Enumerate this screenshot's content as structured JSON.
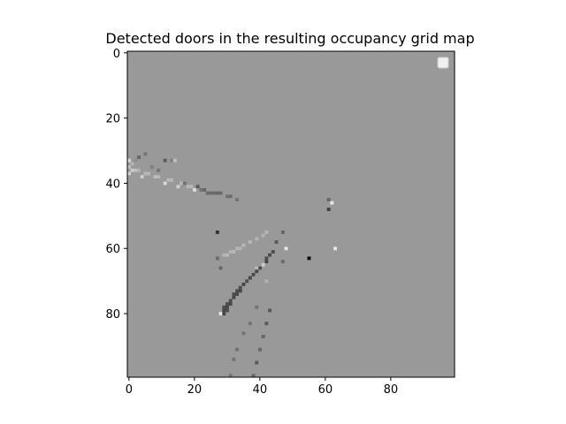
{
  "chart_data": {
    "type": "heatmap",
    "title": "Detected doors in the resulting occupancy grid map",
    "xlabel": "",
    "ylabel": "",
    "grid_size": [
      100,
      100
    ],
    "x_range": [
      -0.5,
      99.5
    ],
    "y_range": [
      99.5,
      -0.5
    ],
    "y_inverted": true,
    "x_ticks": [
      0,
      20,
      40,
      60,
      80
    ],
    "y_ticks": [
      0,
      20,
      40,
      60,
      80
    ],
    "x_tick_labels": [
      "0",
      "20",
      "40",
      "60",
      "80"
    ],
    "y_tick_labels": [
      "0",
      "20",
      "40",
      "60",
      "80"
    ],
    "colormap": "gray",
    "background_value": 0.6,
    "legend": {
      "placement": "upper-right",
      "entries": []
    },
    "cells": [
      {
        "x": 0,
        "y": 33,
        "v": 0.85
      },
      {
        "x": 1,
        "y": 34,
        "v": 0.7
      },
      {
        "x": 2,
        "y": 33,
        "v": 0.55
      },
      {
        "x": 0,
        "y": 35,
        "v": 0.75
      },
      {
        "x": 1,
        "y": 36,
        "v": 0.8
      },
      {
        "x": 2,
        "y": 36,
        "v": 0.75
      },
      {
        "x": 3,
        "y": 36,
        "v": 0.7
      },
      {
        "x": 0,
        "y": 37,
        "v": 0.82
      },
      {
        "x": 3,
        "y": 32,
        "v": 0.4
      },
      {
        "x": 5,
        "y": 31,
        "v": 0.45
      },
      {
        "x": 4,
        "y": 38,
        "v": 0.8
      },
      {
        "x": 5,
        "y": 37,
        "v": 0.72
      },
      {
        "x": 6,
        "y": 37,
        "v": 0.72
      },
      {
        "x": 7,
        "y": 35,
        "v": 0.5
      },
      {
        "x": 8,
        "y": 38,
        "v": 0.75
      },
      {
        "x": 9,
        "y": 38,
        "v": 0.72
      },
      {
        "x": 9,
        "y": 36,
        "v": 0.45
      },
      {
        "x": 11,
        "y": 33,
        "v": 0.35
      },
      {
        "x": 11,
        "y": 40,
        "v": 0.85
      },
      {
        "x": 12,
        "y": 39,
        "v": 0.72
      },
      {
        "x": 13,
        "y": 39,
        "v": 0.72
      },
      {
        "x": 13,
        "y": 33,
        "v": 0.5
      },
      {
        "x": 14,
        "y": 33,
        "v": 0.75
      },
      {
        "x": 15,
        "y": 41,
        "v": 0.82
      },
      {
        "x": 16,
        "y": 40,
        "v": 0.72
      },
      {
        "x": 17,
        "y": 40,
        "v": 0.45
      },
      {
        "x": 18,
        "y": 41,
        "v": 0.72
      },
      {
        "x": 19,
        "y": 41,
        "v": 0.72
      },
      {
        "x": 20,
        "y": 42,
        "v": 0.85
      },
      {
        "x": 21,
        "y": 41,
        "v": 0.35
      },
      {
        "x": 22,
        "y": 42,
        "v": 0.45
      },
      {
        "x": 23,
        "y": 42,
        "v": 0.4
      },
      {
        "x": 24,
        "y": 43,
        "v": 0.42
      },
      {
        "x": 25,
        "y": 43,
        "v": 0.42
      },
      {
        "x": 26,
        "y": 43,
        "v": 0.42
      },
      {
        "x": 27,
        "y": 43,
        "v": 0.4
      },
      {
        "x": 28,
        "y": 43,
        "v": 0.42
      },
      {
        "x": 30,
        "y": 44,
        "v": 0.45
      },
      {
        "x": 31,
        "y": 44,
        "v": 0.42
      },
      {
        "x": 33,
        "y": 45,
        "v": 0.45
      },
      {
        "x": 61,
        "y": 45,
        "v": 0.4
      },
      {
        "x": 62,
        "y": 46,
        "v": 0.9
      },
      {
        "x": 61,
        "y": 48,
        "v": 0.25
      },
      {
        "x": 27,
        "y": 55,
        "v": 0.2
      },
      {
        "x": 47,
        "y": 55,
        "v": 0.4
      },
      {
        "x": 42,
        "y": 55,
        "v": 0.72
      },
      {
        "x": 41,
        "y": 56,
        "v": 0.7
      },
      {
        "x": 39,
        "y": 57,
        "v": 0.7
      },
      {
        "x": 37,
        "y": 58,
        "v": 0.72
      },
      {
        "x": 35,
        "y": 59,
        "v": 0.72
      },
      {
        "x": 34,
        "y": 60,
        "v": 0.7
      },
      {
        "x": 33,
        "y": 60,
        "v": 0.7
      },
      {
        "x": 32,
        "y": 61,
        "v": 0.72
      },
      {
        "x": 31,
        "y": 61,
        "v": 0.7
      },
      {
        "x": 30,
        "y": 62,
        "v": 0.72
      },
      {
        "x": 29,
        "y": 62,
        "v": 0.7
      },
      {
        "x": 27,
        "y": 63,
        "v": 0.42
      },
      {
        "x": 45,
        "y": 58,
        "v": 0.35
      },
      {
        "x": 44,
        "y": 61,
        "v": 0.3
      },
      {
        "x": 48,
        "y": 60,
        "v": 0.9
      },
      {
        "x": 63,
        "y": 60,
        "v": 0.9
      },
      {
        "x": 47,
        "y": 64,
        "v": 0.42
      },
      {
        "x": 55,
        "y": 63,
        "v": 0.02
      },
      {
        "x": 43,
        "y": 62,
        "v": 0.3
      },
      {
        "x": 42,
        "y": 63,
        "v": 0.3
      },
      {
        "x": 42,
        "y": 64,
        "v": 0.28
      },
      {
        "x": 41,
        "y": 65,
        "v": 0.8
      },
      {
        "x": 40,
        "y": 66,
        "v": 0.3
      },
      {
        "x": 39,
        "y": 66,
        "v": 0.72
      },
      {
        "x": 39,
        "y": 67,
        "v": 0.28
      },
      {
        "x": 38,
        "y": 68,
        "v": 0.3
      },
      {
        "x": 37,
        "y": 69,
        "v": 0.28
      },
      {
        "x": 36,
        "y": 70,
        "v": 0.3
      },
      {
        "x": 35,
        "y": 71,
        "v": 0.28
      },
      {
        "x": 34,
        "y": 72,
        "v": 0.3
      },
      {
        "x": 34,
        "y": 73,
        "v": 0.28
      },
      {
        "x": 33,
        "y": 73,
        "v": 0.3
      },
      {
        "x": 33,
        "y": 74,
        "v": 0.28
      },
      {
        "x": 32,
        "y": 74,
        "v": 0.3
      },
      {
        "x": 32,
        "y": 75,
        "v": 0.28
      },
      {
        "x": 31,
        "y": 76,
        "v": 0.3
      },
      {
        "x": 31,
        "y": 77,
        "v": 0.28
      },
      {
        "x": 30,
        "y": 77,
        "v": 0.3
      },
      {
        "x": 30,
        "y": 78,
        "v": 0.28
      },
      {
        "x": 29,
        "y": 78,
        "v": 0.3
      },
      {
        "x": 29,
        "y": 79,
        "v": 0.28
      },
      {
        "x": 30,
        "y": 79,
        "v": 0.3
      },
      {
        "x": 28,
        "y": 80,
        "v": 0.9
      },
      {
        "x": 29,
        "y": 80,
        "v": 0.28
      },
      {
        "x": 28,
        "y": 66,
        "v": 0.4
      },
      {
        "x": 42,
        "y": 70,
        "v": 0.7
      },
      {
        "x": 39,
        "y": 78,
        "v": 0.45
      },
      {
        "x": 43,
        "y": 79,
        "v": 0.35
      },
      {
        "x": 37,
        "y": 83,
        "v": 0.45
      },
      {
        "x": 42,
        "y": 83,
        "v": 0.35
      },
      {
        "x": 35,
        "y": 86,
        "v": 0.45
      },
      {
        "x": 41,
        "y": 87,
        "v": 0.4
      },
      {
        "x": 33,
        "y": 91,
        "v": 0.45
      },
      {
        "x": 40,
        "y": 91,
        "v": 0.4
      },
      {
        "x": 32,
        "y": 94,
        "v": 0.45
      },
      {
        "x": 39,
        "y": 95,
        "v": 0.35
      },
      {
        "x": 31,
        "y": 99,
        "v": 0.45
      },
      {
        "x": 38,
        "y": 99,
        "v": 0.4
      }
    ]
  }
}
